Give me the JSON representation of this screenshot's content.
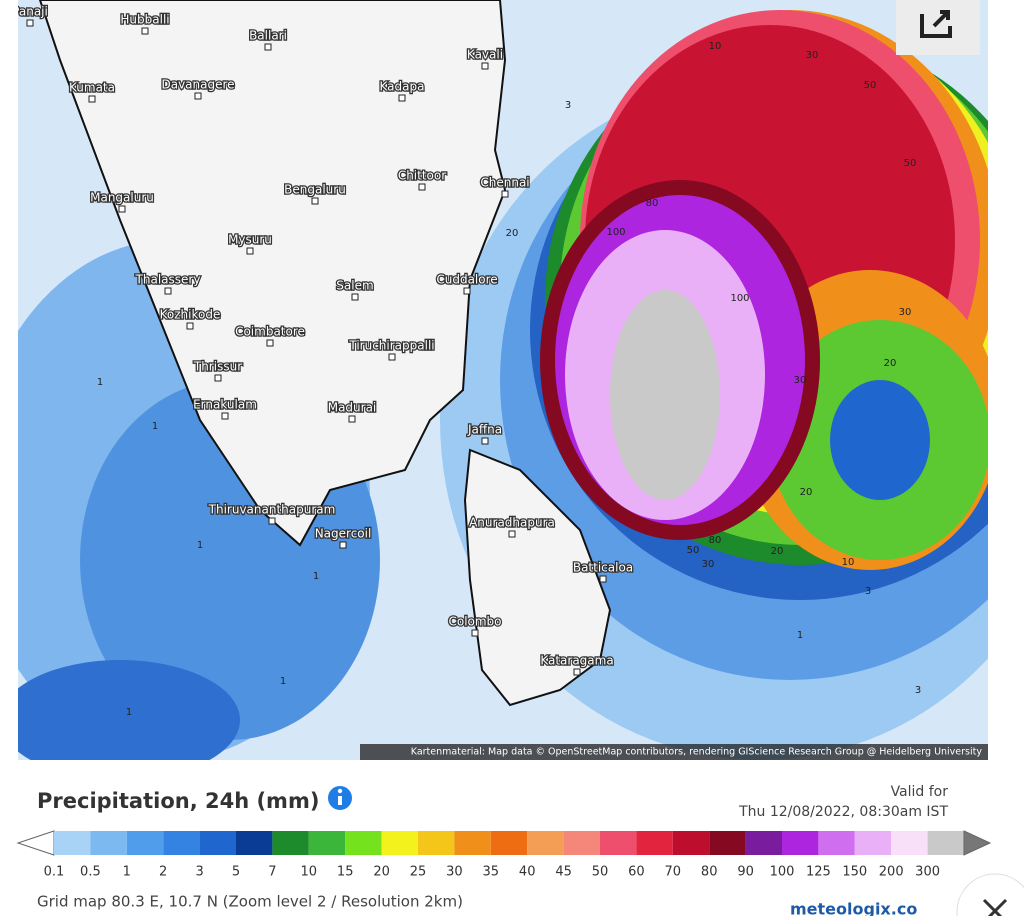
{
  "map": {
    "cities": [
      "Panaji",
      "Hubballi",
      "Ballari",
      "Kavali",
      "Kumata",
      "Davanagere",
      "Kadapa",
      "Chittoor",
      "Chennai",
      "Mangaluru",
      "Bengaluru",
      "Mysuru",
      "Cuddalore",
      "Thalassery",
      "Salem",
      "Kozhikode",
      "Coimbatore",
      "Tiruchirappalli",
      "Thrissur",
      "Ernakulam",
      "Madurai",
      "Jaffna",
      "Thiruvananthapuram",
      "Nagercoil",
      "Anuradhapura",
      "Batticaloa",
      "Colombo",
      "Kataragama"
    ],
    "contour_labels": [
      10,
      30,
      50,
      3,
      50,
      20,
      100,
      80,
      100,
      30,
      20,
      30,
      1,
      1,
      20,
      50,
      80,
      30,
      20,
      10,
      1,
      1,
      3,
      1,
      1,
      1,
      3
    ],
    "attribution": "Kartenmaterial: Map data © OpenStreetMap contributors, rendering GIScience Research Group @ Heidelberg University"
  },
  "legend": {
    "title": "Precipitation, 24h (mm)",
    "valid_label": "Valid for",
    "valid_time": "Thu 12/08/2022, 08:30am IST",
    "scale": [
      {
        "value": 0.1,
        "color": "#a9d3f6"
      },
      {
        "value": 0.5,
        "color": "#7db9f1"
      },
      {
        "value": 1,
        "color": "#4f9deb"
      },
      {
        "value": 2,
        "color": "#3483e2"
      },
      {
        "value": 3,
        "color": "#1f67cf"
      },
      {
        "value": 5,
        "color": "#0b3c95"
      },
      {
        "value": 7,
        "color": "#1d8a2b"
      },
      {
        "value": 10,
        "color": "#3bb53a"
      },
      {
        "value": 15,
        "color": "#74e21c"
      },
      {
        "value": 20,
        "color": "#f3f21c"
      },
      {
        "value": 25,
        "color": "#f5c61a"
      },
      {
        "value": 30,
        "color": "#f0901a"
      },
      {
        "value": 35,
        "color": "#ee6c12"
      },
      {
        "value": 40,
        "color": "#f49d55"
      },
      {
        "value": 45,
        "color": "#f4877a"
      },
      {
        "value": 50,
        "color": "#ee4f6c"
      },
      {
        "value": 60,
        "color": "#e3243f"
      },
      {
        "value": 70,
        "color": "#bd0e2e"
      },
      {
        "value": 80,
        "color": "#850920"
      },
      {
        "value": 90,
        "color": "#7a1c9e"
      },
      {
        "value": 100,
        "color": "#ad25de"
      },
      {
        "value": 125,
        "color": "#cf6ff0"
      },
      {
        "value": 150,
        "color": "#eab0f7"
      },
      {
        "value": 200,
        "color": "#f8e0f8"
      },
      {
        "value": 300,
        "color": "#c9c9c9"
      }
    ]
  },
  "footer": {
    "grid": "Grid map 80.3 E, 10.7 N (Zoom level 2 / Resolution 2km)",
    "brand": "meteologix.co"
  }
}
